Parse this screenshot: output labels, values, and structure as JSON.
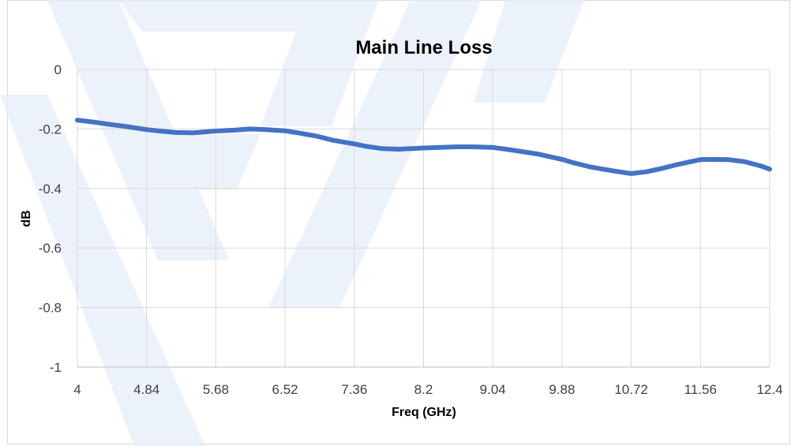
{
  "chart_data": {
    "type": "line",
    "title": "Main Line Loss",
    "xlabel": "Freq (GHz)",
    "ylabel": "dB",
    "xlim": [
      4,
      12.4
    ],
    "ylim": [
      -1,
      0
    ],
    "x_ticks": [
      "4",
      "4.84",
      "5.68",
      "6.52",
      "7.36",
      "8.2",
      "9.04",
      "9.88",
      "10.72",
      "11.56",
      "12.4"
    ],
    "y_ticks": [
      "0",
      "-0.2",
      "-0.4",
      "-0.6",
      "-0.8",
      "-1"
    ],
    "grid": true,
    "legend": "none",
    "series": [
      {
        "color": "#4472c4",
        "x": [
          4.0,
          4.2,
          4.4,
          4.6,
          4.84,
          5.0,
          5.2,
          5.4,
          5.68,
          5.9,
          6.1,
          6.3,
          6.52,
          6.7,
          6.9,
          7.1,
          7.36,
          7.5,
          7.7,
          7.9,
          8.2,
          8.4,
          8.6,
          8.8,
          9.04,
          9.2,
          9.4,
          9.6,
          9.88,
          10.0,
          10.2,
          10.4,
          10.6,
          10.72,
          10.9,
          11.1,
          11.3,
          11.56,
          11.7,
          11.9,
          12.1,
          12.3,
          12.4
        ],
        "y": [
          -0.17,
          -0.177,
          -0.185,
          -0.192,
          -0.202,
          -0.207,
          -0.212,
          -0.213,
          -0.207,
          -0.204,
          -0.2,
          -0.202,
          -0.206,
          -0.214,
          -0.224,
          -0.238,
          -0.25,
          -0.258,
          -0.266,
          -0.268,
          -0.264,
          -0.262,
          -0.26,
          -0.26,
          -0.262,
          -0.268,
          -0.276,
          -0.285,
          -0.302,
          -0.312,
          -0.326,
          -0.336,
          -0.345,
          -0.35,
          -0.344,
          -0.332,
          -0.318,
          -0.303,
          -0.302,
          -0.303,
          -0.31,
          -0.325,
          -0.335
        ]
      }
    ]
  }
}
